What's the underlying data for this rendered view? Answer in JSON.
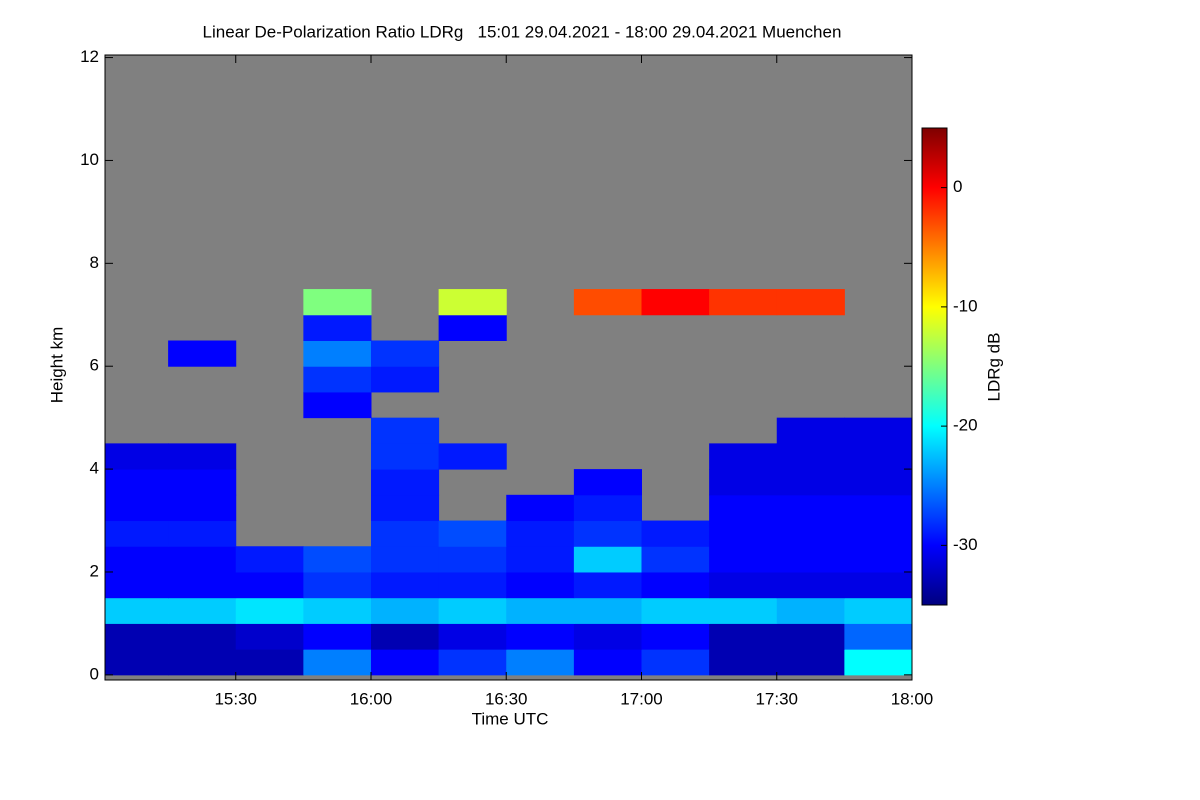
{
  "chart_data": {
    "type": "heatmap",
    "title": "Linear De-Polarization Ratio LDRg   15:01 29.04.2021 - 18:00 29.04.2021 Muenchen",
    "x_label": "Time UTC",
    "y_label": "Height km",
    "colorbar_label": "LDRg dB",
    "xlim": [
      15.0167,
      18.0
    ],
    "xticks": [
      {
        "value": 15.5,
        "label": "15:30"
      },
      {
        "value": 16.0,
        "label": "16:00"
      },
      {
        "value": 16.5,
        "label": "16:30"
      },
      {
        "value": 17.0,
        "label": "17:00"
      },
      {
        "value": 17.5,
        "label": "17:30"
      },
      {
        "value": 18.0,
        "label": "18:00"
      }
    ],
    "ylim": [
      -0.1,
      12.05
    ],
    "yticks": [
      0,
      2,
      4,
      6,
      8,
      10,
      12
    ],
    "xbins": [
      15.0,
      15.25,
      15.5,
      15.75,
      16.0,
      16.25,
      16.5,
      16.75,
      17.0,
      17.25,
      17.5,
      17.75,
      18.0
    ],
    "ybins": [
      0,
      0.5,
      1,
      1.5,
      2,
      2.5,
      3,
      3.5,
      4,
      4.5,
      5,
      5.5,
      6,
      6.5,
      7,
      7.5,
      8
    ],
    "z": [
      [
        -33,
        -33,
        -33,
        -25,
        -30,
        -28,
        -25,
        -30,
        -28,
        -33,
        -33,
        -20
      ],
      [
        -33,
        -33,
        -32,
        -30,
        -33,
        -31,
        -30,
        -31,
        -30,
        -33,
        -33,
        -26
      ],
      [
        -22,
        -22,
        -21,
        -22,
        -23,
        -22,
        -23,
        -23,
        -22,
        -22,
        -23,
        -22
      ],
      [
        -30,
        -30,
        -30,
        -28,
        -29,
        -29,
        -30,
        -29,
        -30,
        -31,
        -31,
        -31
      ],
      [
        -30,
        -30,
        -29,
        -27,
        -28,
        -28,
        -29,
        -22,
        -28,
        -30,
        -30,
        -30
      ],
      [
        -29,
        -29,
        null,
        null,
        -28,
        -27,
        -29,
        -28,
        -29,
        -30,
        -30,
        -30
      ],
      [
        -30,
        -30,
        null,
        null,
        -29,
        null,
        -30,
        -29,
        null,
        -30,
        -30,
        -30
      ],
      [
        -30,
        -30,
        null,
        null,
        -29,
        null,
        null,
        -30,
        null,
        -31,
        -31,
        -31
      ],
      [
        -31,
        -31,
        null,
        null,
        -28,
        -29,
        null,
        null,
        null,
        -31,
        -31,
        -31
      ],
      [
        null,
        null,
        null,
        null,
        -28,
        null,
        null,
        null,
        null,
        null,
        -31,
        -31
      ],
      [
        null,
        null,
        null,
        -30,
        null,
        null,
        null,
        null,
        null,
        null,
        null,
        null
      ],
      [
        null,
        null,
        null,
        -28,
        -29,
        null,
        null,
        null,
        null,
        null,
        null,
        null
      ],
      [
        null,
        -30,
        null,
        -25,
        -28,
        null,
        null,
        null,
        null,
        null,
        null,
        null
      ],
      [
        null,
        null,
        null,
        -29,
        null,
        -30,
        null,
        null,
        null,
        null,
        null,
        null
      ],
      [
        null,
        null,
        null,
        -15,
        null,
        -12,
        null,
        -3,
        0,
        -2,
        -2,
        null
      ],
      [
        null,
        null,
        null,
        null,
        null,
        null,
        null,
        null,
        null,
        null,
        null,
        null
      ]
    ],
    "zlim": [
      -35,
      5
    ],
    "zticks": [
      0,
      -10,
      -20,
      -30
    ],
    "colormap": [
      "#00007f",
      "#0000ff",
      "#007fff",
      "#00ffff",
      "#7fff7f",
      "#ffff00",
      "#ff7f00",
      "#ff0000",
      "#7f0000"
    ],
    "missing_color": "#808080"
  }
}
